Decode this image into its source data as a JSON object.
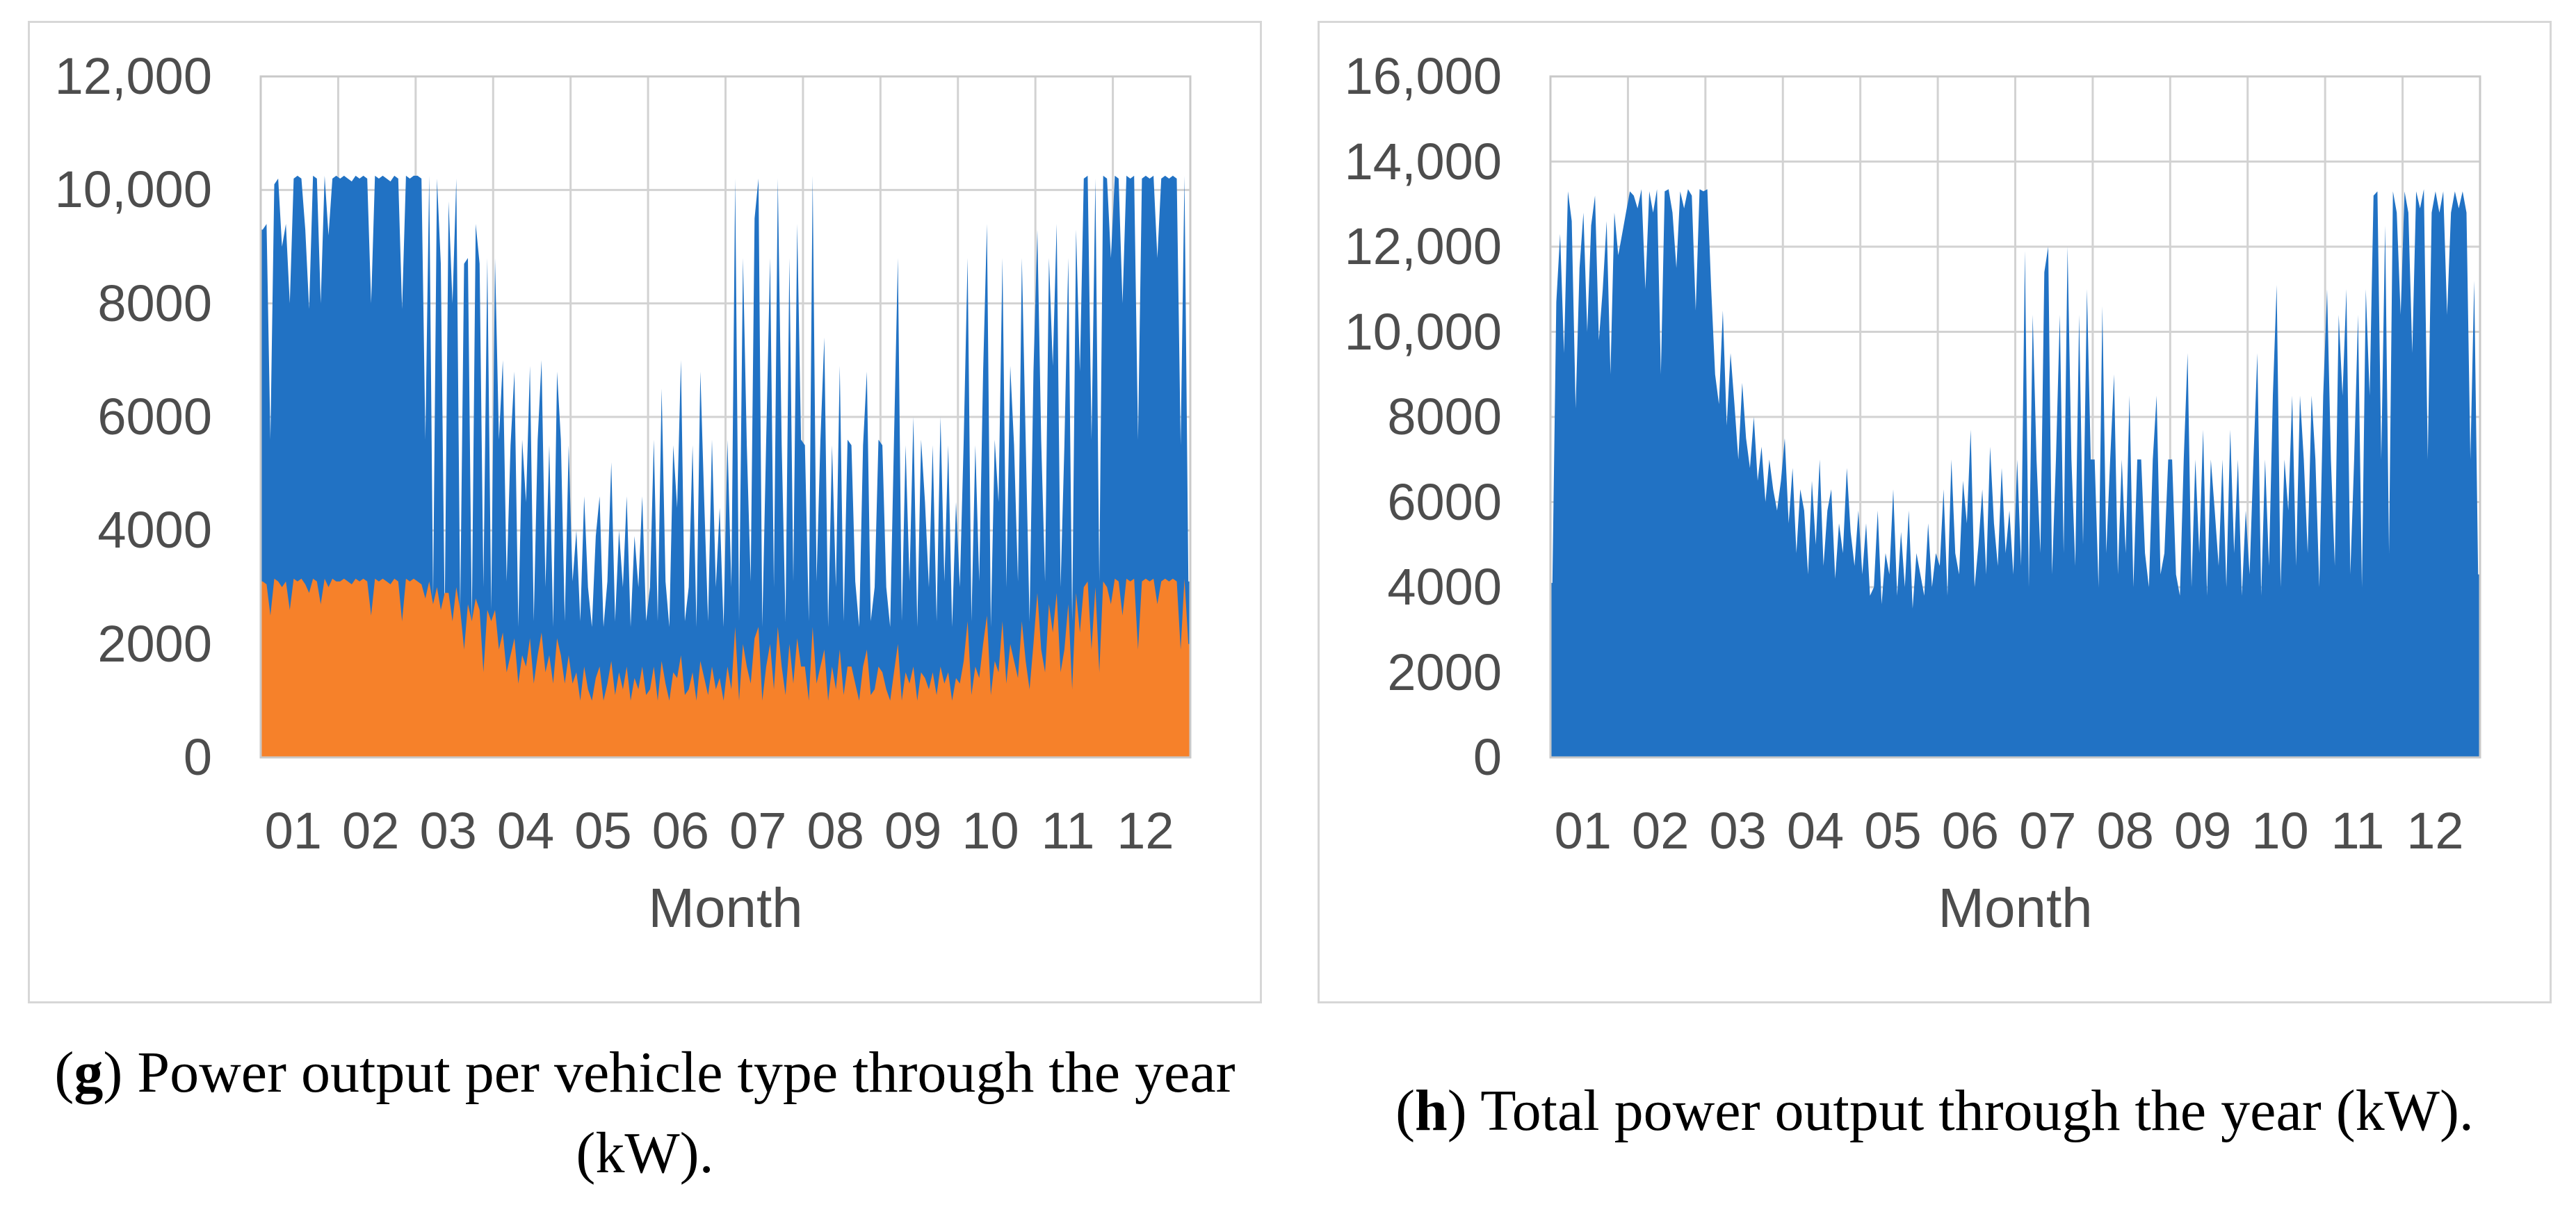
{
  "colors": {
    "blue": "#2172c4",
    "orange": "#f6812a",
    "grid": "#d2d2d2",
    "plot_border": "#c9c9c9",
    "panel_border": "#d7d7d7",
    "axis_text": "#4d4d4d",
    "caption_text": "#000000",
    "background": "#ffffff"
  },
  "chart_data": [
    {
      "type": "area",
      "caption": {
        "open": "(",
        "letter": "g",
        "close": ")",
        "text": " Power output per vehicle type through the year (kW)."
      },
      "x_axis_title": "Month",
      "x_tick_labels": [
        "01",
        "02",
        "03",
        "04",
        "05",
        "06",
        "07",
        "08",
        "09",
        "10",
        "11",
        "12"
      ],
      "ylim": [
        0,
        12000
      ],
      "y_ticks": [
        {
          "value": 12000,
          "label": "12,000"
        },
        {
          "value": 10000,
          "label": "10,000"
        },
        {
          "value": 8000,
          "label": "8000"
        },
        {
          "value": 6000,
          "label": "6000"
        },
        {
          "value": 4000,
          "label": "4000"
        },
        {
          "value": 2000,
          "label": "2000"
        },
        {
          "value": 0,
          "label": "0"
        }
      ],
      "grid": true,
      "legend": "none",
      "points_per_month": 20,
      "series": [
        {
          "name": "series-blue",
          "color_key": "blue",
          "values": [
            9300,
            9400,
            5600,
            10100,
            10200,
            9000,
            9400,
            8000,
            10200,
            10250,
            10200,
            9300,
            7900,
            10250,
            10200,
            8000,
            10250,
            9200,
            10200,
            10250,
            10200,
            10250,
            10200,
            10150,
            10250,
            10200,
            10250,
            10200,
            8000,
            10250,
            10200,
            10250,
            10200,
            10150,
            10250,
            10200,
            7900,
            10250,
            10200,
            10250,
            10250,
            10200,
            5600,
            10250,
            2800,
            10200,
            8700,
            2500,
            9800,
            8000,
            10200,
            2600,
            8700,
            8800,
            2400,
            9400,
            8700,
            3000,
            8800,
            2600,
            8800,
            5600,
            7000,
            3100,
            5500,
            6800,
            2300,
            5600,
            4500,
            6900,
            2400,
            5600,
            7000,
            3000,
            5500,
            2300,
            6800,
            5600,
            2400,
            5500,
            3100,
            4000,
            2400,
            4600,
            3000,
            2300,
            3900,
            4600,
            2300,
            3100,
            5200,
            2400,
            4000,
            3000,
            4600,
            2300,
            3900,
            3000,
            4600,
            2400,
            3000,
            5600,
            2400,
            6500,
            3100,
            2300,
            5500,
            4400,
            7000,
            2400,
            3000,
            5500,
            2300,
            6800,
            4500,
            2400,
            5600,
            3000,
            4400,
            2300,
            5600,
            3000,
            10200,
            2400,
            8800,
            5500,
            3100,
            9500,
            10200,
            2300,
            5600,
            8800,
            3000,
            10200,
            5500,
            2400,
            8800,
            3100,
            9400,
            5600,
            5500,
            2400,
            10250,
            3100,
            5600,
            7400,
            2300,
            5500,
            3000,
            6900,
            2400,
            5600,
            5500,
            3100,
            2300,
            5500,
            6800,
            2400,
            3000,
            5600,
            5500,
            3000,
            2300,
            5600,
            8800,
            2400,
            5500,
            3100,
            6000,
            2300,
            5600,
            4500,
            3000,
            5500,
            2400,
            6000,
            3100,
            5500,
            2300,
            4500,
            3000,
            5600,
            8800,
            2400,
            5500,
            3100,
            6800,
            9400,
            2300,
            5600,
            4500,
            8800,
            3000,
            6900,
            5500,
            3100,
            8800,
            5600,
            2400,
            6800,
            9300,
            5600,
            3100,
            8800,
            6900,
            9400,
            3000,
            5500,
            8800,
            2400,
            9300,
            6800,
            10200,
            10250,
            5600,
            10200,
            3100,
            10250,
            10200,
            8800,
            10250,
            10200,
            8000,
            10250,
            10200,
            10250,
            5600,
            10200,
            10250,
            10200,
            10250,
            8800,
            10200,
            10250,
            10200,
            10250,
            10200,
            5500,
            10250,
            3100
          ]
        },
        {
          "name": "series-orange",
          "color_key": "orange",
          "values": [
            3100,
            3050,
            2500,
            3150,
            3100,
            3000,
            3100,
            2600,
            3150,
            3100,
            3150,
            3050,
            2900,
            3150,
            3100,
            2700,
            3150,
            3000,
            3150,
            3100,
            3100,
            3150,
            3100,
            3050,
            3150,
            3100,
            3150,
            3100,
            2500,
            3150,
            3100,
            3150,
            3100,
            3050,
            3150,
            3100,
            2400,
            3150,
            3100,
            3150,
            3100,
            3050,
            2800,
            3100,
            2700,
            3000,
            2600,
            2900,
            2900,
            2400,
            3000,
            2600,
            1900,
            2700,
            2400,
            2800,
            2600,
            1500,
            2600,
            2400,
            2600,
            1900,
            2200,
            1500,
            1800,
            2100,
            1300,
            1800,
            1600,
            2100,
            1300,
            1800,
            2200,
            1500,
            1800,
            1300,
            2100,
            1800,
            1300,
            1800,
            1300,
            1500,
            1000,
            1600,
            1200,
            1000,
            1400,
            1600,
            1000,
            1300,
            1700,
            1100,
            1500,
            1200,
            1600,
            1000,
            1400,
            1200,
            1600,
            1100,
            1200,
            1600,
            1000,
            1700,
            1300,
            1000,
            1500,
            1400,
            1800,
            1100,
            1200,
            1500,
            1000,
            1700,
            1400,
            1100,
            1600,
            1200,
            1400,
            1000,
            1600,
            1200,
            2300,
            1000,
            2000,
            1600,
            1300,
            2100,
            2300,
            1000,
            1600,
            2000,
            1200,
            2300,
            1600,
            1100,
            2000,
            1300,
            2100,
            1600,
            1600,
            1000,
            2300,
            1300,
            1600,
            1900,
            1000,
            1600,
            1200,
            1900,
            1100,
            1600,
            1600,
            1300,
            1000,
            1600,
            1900,
            1100,
            1200,
            1600,
            1500,
            1200,
            1000,
            1500,
            2000,
            1000,
            1500,
            1300,
            1600,
            1000,
            1500,
            1400,
            1200,
            1500,
            1100,
            1600,
            1300,
            1500,
            1000,
            1400,
            1300,
            1700,
            2400,
            1100,
            1600,
            1400,
            2000,
            2500,
            1100,
            1700,
            1500,
            2400,
            1300,
            2000,
            1700,
            1400,
            2400,
            1700,
            1200,
            2000,
            2900,
            1900,
            1500,
            2700,
            2200,
            2900,
            1500,
            1900,
            2700,
            1200,
            2900,
            2200,
            3000,
            3100,
            1900,
            3000,
            1500,
            3100,
            3000,
            2700,
            3150,
            3100,
            2500,
            3150,
            3100,
            3150,
            1900,
            3100,
            3150,
            3100,
            3150,
            2700,
            3100,
            3150,
            3100,
            3150,
            3100,
            1900,
            3150,
            2000
          ]
        }
      ]
    },
    {
      "type": "area",
      "caption": {
        "open": "(",
        "letter": "h",
        "close": ")",
        "text": " Total power output through the year (kW)."
      },
      "x_axis_title": "Month",
      "x_tick_labels": [
        "01",
        "02",
        "03",
        "04",
        "05",
        "06",
        "07",
        "08",
        "09",
        "10",
        "11",
        "12"
      ],
      "ylim": [
        0,
        16000
      ],
      "y_ticks": [
        {
          "value": 16000,
          "label": "16,000"
        },
        {
          "value": 14000,
          "label": "14,000"
        },
        {
          "value": 12000,
          "label": "12,000"
        },
        {
          "value": 10000,
          "label": "10,000"
        },
        {
          "value": 8000,
          "label": "8000"
        },
        {
          "value": 6000,
          "label": "6000"
        },
        {
          "value": 4000,
          "label": "4000"
        },
        {
          "value": 2000,
          "label": "2000"
        },
        {
          "value": 0,
          "label": "0"
        }
      ],
      "grid": true,
      "legend": "none",
      "points_per_month": 20,
      "series": [
        {
          "name": "series-blue",
          "color_key": "blue",
          "values": [
            4100,
            10700,
            12300,
            9500,
            13300,
            12600,
            8200,
            11500,
            12800,
            10000,
            12500,
            13200,
            9800,
            11000,
            12600,
            9000,
            12800,
            11800,
            12300,
            12800,
            13300,
            13200,
            12900,
            13350,
            11000,
            13300,
            12800,
            13350,
            9000,
            13300,
            13350,
            12800,
            11500,
            13300,
            12900,
            13350,
            13200,
            10500,
            13350,
            13300,
            13350,
            11000,
            9000,
            8300,
            10500,
            7800,
            9500,
            8300,
            7000,
            8800,
            7500,
            6800,
            8000,
            6500,
            7300,
            6000,
            7000,
            6300,
            5800,
            6500,
            7500,
            5500,
            6800,
            4800,
            6300,
            5800,
            4300,
            6500,
            5000,
            7000,
            4500,
            5800,
            6300,
            4200,
            5500,
            4800,
            6800,
            5300,
            4500,
            5800,
            4300,
            5500,
            3800,
            4000,
            5800,
            3600,
            4800,
            4300,
            6300,
            3800,
            5300,
            4000,
            5800,
            3500,
            4800,
            4300,
            3800,
            5500,
            4000,
            4800,
            4500,
            6300,
            3800,
            7000,
            4800,
            4300,
            6500,
            5500,
            7700,
            4000,
            5000,
            6300,
            4300,
            7300,
            5500,
            4500,
            6800,
            4800,
            5800,
            4300,
            7000,
            4500,
            11900,
            4000,
            10400,
            7000,
            4800,
            11400,
            12000,
            4300,
            7000,
            10400,
            4800,
            12000,
            7000,
            4500,
            10400,
            5000,
            11000,
            7000,
            7000,
            4000,
            10600,
            4800,
            7000,
            9000,
            4300,
            7000,
            4800,
            8500,
            4000,
            7000,
            7000,
            4800,
            4000,
            7000,
            8500,
            4300,
            4800,
            7000,
            7000,
            4300,
            3800,
            7000,
            9500,
            4000,
            7000,
            4800,
            7700,
            3800,
            7000,
            5800,
            4500,
            7000,
            4000,
            7700,
            4800,
            7000,
            3800,
            5800,
            4300,
            7000,
            9500,
            3800,
            7000,
            4500,
            8500,
            11100,
            4000,
            7000,
            5800,
            8500,
            4500,
            8500,
            7000,
            4800,
            8500,
            7000,
            4000,
            8500,
            11000,
            7000,
            4500,
            10400,
            8500,
            11000,
            4300,
            7000,
            10400,
            4000,
            11000,
            8500,
            13200,
            13300,
            7000,
            12500,
            4800,
            13300,
            12800,
            10400,
            13300,
            12800,
            9500,
            13300,
            12900,
            13350,
            7000,
            12800,
            13300,
            12800,
            13300,
            10400,
            12800,
            13300,
            12900,
            13300,
            12800,
            7000,
            11200,
            4300
          ]
        }
      ]
    }
  ]
}
